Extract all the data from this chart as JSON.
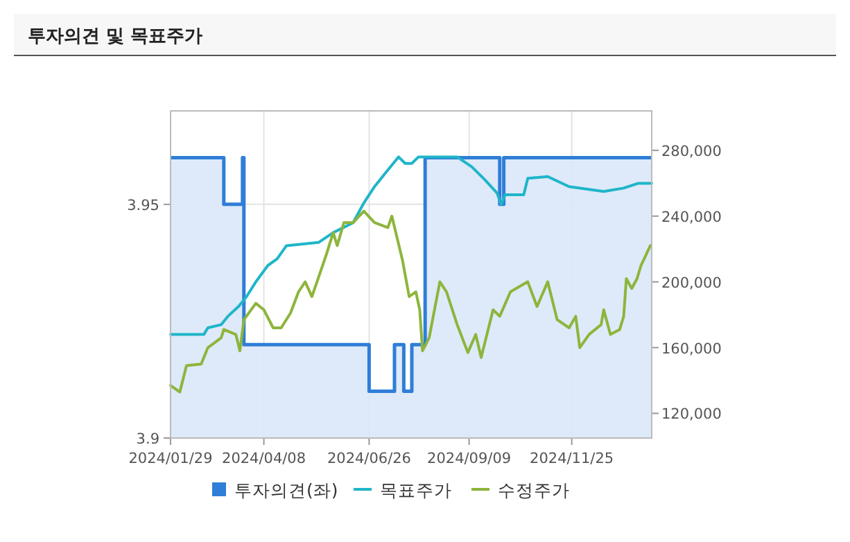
{
  "chart_data": {
    "type": "line",
    "title": "투자의견 및 목표주가",
    "xlim": [
      "2024-01-29",
      "2025-01-24"
    ],
    "xticks": [
      {
        "value": "2024-01-29",
        "label": "2024/01/29"
      },
      {
        "value": "2024-04-08",
        "label": "2024/04/08"
      },
      {
        "value": "2024-06-26",
        "label": "2024/06/26"
      },
      {
        "value": "2024-09-09",
        "label": "2024/09/09"
      },
      {
        "value": "2024-11-25",
        "label": "2024/11/25"
      }
    ],
    "ylim": [
      3.9,
      3.97
    ],
    "yticks": [
      3.9,
      3.95
    ],
    "y2lim": [
      105000,
      304000
    ],
    "y2ticks": [
      {
        "value": 120000,
        "label": "120,000"
      },
      {
        "value": 160000,
        "label": "160,000"
      },
      {
        "value": 200000,
        "label": "200,000"
      },
      {
        "value": 240000,
        "label": "240,000"
      },
      {
        "value": 280000,
        "label": "280,000"
      }
    ],
    "grid": true,
    "legend": "bottom",
    "series": [
      {
        "name": "투자의견(좌)",
        "type": "area",
        "color": "#2f7ed8",
        "x": [
          "2024-01-29",
          "2024-03-09",
          "2024-03-09",
          "2024-03-23",
          "2024-03-23",
          "2024-03-24",
          "2024-03-24",
          "2024-06-26",
          "2024-06-26",
          "2024-07-15",
          "2024-07-15",
          "2024-07-22",
          "2024-07-22",
          "2024-07-28",
          "2024-07-28",
          "2024-08-07",
          "2024-08-07",
          "2024-10-02",
          "2024-10-02",
          "2024-10-05",
          "2024-10-05",
          "2025-01-24"
        ],
        "values": [
          3.96,
          3.96,
          3.95,
          3.95,
          3.96,
          3.96,
          3.92,
          3.92,
          3.91,
          3.91,
          3.92,
          3.92,
          3.91,
          3.91,
          3.92,
          3.92,
          3.96,
          3.96,
          3.95,
          3.95,
          3.96,
          3.96
        ]
      },
      {
        "name": "목표주가",
        "axis": "y2",
        "color": "#1fb5c9",
        "x": [
          "2024-01-29",
          "2024-02-23",
          "2024-02-26",
          "2024-03-07",
          "2024-03-12",
          "2024-03-20",
          "2024-03-26",
          "2024-04-02",
          "2024-04-11",
          "2024-04-18",
          "2024-04-25",
          "2024-05-19",
          "2024-05-30",
          "2024-06-14",
          "2024-06-22",
          "2024-06-30",
          "2024-07-07",
          "2024-07-18",
          "2024-07-23",
          "2024-07-28",
          "2024-08-02",
          "2024-08-31",
          "2024-09-11",
          "2024-09-21",
          "2024-09-30",
          "2024-10-03",
          "2024-10-06",
          "2024-10-20",
          "2024-10-23",
          "2024-11-07",
          "2024-11-23",
          "2024-12-19",
          "2025-01-03",
          "2025-01-14",
          "2025-01-24"
        ],
        "values": [
          168000,
          168000,
          172000,
          174000,
          179000,
          185000,
          191000,
          200000,
          210000,
          214000,
          222000,
          224000,
          230000,
          236000,
          248000,
          258000,
          265000,
          276000,
          272000,
          272000,
          276000,
          276000,
          270000,
          262000,
          254000,
          247000,
          253000,
          253000,
          263000,
          264000,
          258000,
          255000,
          257000,
          260000,
          260000
        ]
      },
      {
        "name": "수정주가",
        "axis": "y2",
        "color": "#8db53c",
        "x": [
          "2024-01-29",
          "2024-02-05",
          "2024-02-10",
          "2024-02-21",
          "2024-02-26",
          "2024-03-07",
          "2024-03-09",
          "2024-03-18",
          "2024-03-21",
          "2024-03-24",
          "2024-04-02",
          "2024-04-08",
          "2024-04-15",
          "2024-04-21",
          "2024-04-28",
          "2024-05-04",
          "2024-05-09",
          "2024-05-14",
          "2024-05-17",
          "2024-05-25",
          "2024-05-30",
          "2024-06-02",
          "2024-06-07",
          "2024-06-14",
          "2024-06-22",
          "2024-06-30",
          "2024-07-10",
          "2024-07-13",
          "2024-07-21",
          "2024-07-26",
          "2024-07-31",
          "2024-08-03",
          "2024-08-05",
          "2024-08-10",
          "2024-08-18",
          "2024-08-23",
          "2024-08-31",
          "2024-09-08",
          "2024-09-14",
          "2024-09-18",
          "2024-09-27",
          "2024-10-02",
          "2024-10-10",
          "2024-10-23",
          "2024-10-30",
          "2024-11-07",
          "2024-11-14",
          "2024-11-23",
          "2024-11-28",
          "2024-12-01",
          "2024-12-08",
          "2024-12-17",
          "2024-12-19",
          "2024-12-24",
          "2024-12-31",
          "2025-01-03",
          "2025-01-05",
          "2025-01-09",
          "2025-01-13",
          "2025-01-16",
          "2025-01-20",
          "2025-01-23"
        ],
        "values": [
          137000,
          133000,
          149000,
          150000,
          160000,
          166000,
          171000,
          168000,
          158000,
          177000,
          187000,
          183000,
          172000,
          172000,
          181000,
          194000,
          200000,
          191000,
          198000,
          217000,
          230000,
          222000,
          236000,
          236000,
          243000,
          236000,
          233000,
          240000,
          213000,
          191000,
          194000,
          183000,
          158000,
          166000,
          200000,
          194000,
          174000,
          157000,
          168000,
          154000,
          183000,
          179000,
          194000,
          200000,
          185000,
          200000,
          177000,
          172000,
          179000,
          160000,
          168000,
          174000,
          183000,
          168000,
          171000,
          179000,
          202000,
          196000,
          202000,
          210000,
          217000,
          222000
        ]
      }
    ]
  }
}
